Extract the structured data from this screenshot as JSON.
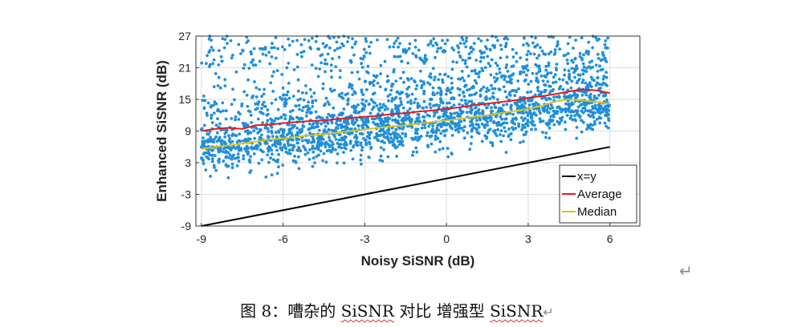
{
  "chart_data": {
    "type": "scatter",
    "xlabel": "Noisy SiSNR (dB)",
    "ylabel": "Enhanced SiSNR (dB)",
    "xlim": [
      -9.2,
      7.1
    ],
    "ylim": [
      -9,
      27
    ],
    "xticks": [
      -9,
      -6,
      -3,
      0,
      3,
      6
    ],
    "yticks": [
      -9,
      -3,
      3,
      9,
      15,
      21,
      27
    ],
    "xtick_labels": [
      "-9",
      "-6",
      "-3",
      "0",
      "3",
      "6"
    ],
    "ytick_labels": [
      "-9",
      "-3",
      "3",
      "9",
      "15",
      "21",
      "27"
    ],
    "grid": true,
    "legend_position": "bottom-right",
    "colors": {
      "points": "#1f8fdb",
      "xy": "#000000",
      "average": "#e8191c",
      "median": "#d8c21c"
    },
    "legend": [
      {
        "label": "x=y",
        "color": "#000000"
      },
      {
        "label": "Average",
        "color": "#e8191c"
      },
      {
        "label": "Median",
        "color": "#d8c21c"
      }
    ],
    "series": [
      {
        "name": "x=y",
        "x": [
          -9,
          6
        ],
        "y": [
          -9,
          6
        ]
      },
      {
        "name": "Average",
        "x": [
          -9,
          -8.5,
          -8,
          -7.5,
          -7,
          -6.5,
          -6,
          -5.5,
          -5,
          -4.5,
          -4,
          -3.5,
          -3,
          -2.5,
          -2,
          -1.5,
          -1,
          -0.5,
          0,
          0.5,
          1,
          1.5,
          2,
          2.5,
          3,
          3.5,
          4,
          4.5,
          5,
          5.5,
          6
        ],
        "y": [
          9.0,
          9.4,
          9.6,
          9.4,
          10.1,
          10.2,
          10.5,
          10.7,
          10.9,
          11.0,
          11.3,
          11.5,
          11.7,
          11.9,
          12.2,
          12.4,
          12.7,
          12.9,
          13.2,
          13.5,
          13.9,
          14.2,
          14.5,
          14.8,
          15.3,
          15.6,
          16.0,
          16.5,
          16.9,
          16.7,
          16.2
        ]
      },
      {
        "name": "Median",
        "x": [
          -9,
          -8.5,
          -8,
          -7.5,
          -7,
          -6.5,
          -6,
          -5.5,
          -5,
          -4.5,
          -4,
          -3.5,
          -3,
          -2.5,
          -2,
          -1.5,
          -1,
          -0.5,
          0,
          0.5,
          1,
          1.5,
          2,
          2.5,
          3,
          3.5,
          4,
          4.5,
          5,
          5.5,
          6
        ],
        "y": [
          5.6,
          6.0,
          6.3,
          6.6,
          7.0,
          7.4,
          7.6,
          7.9,
          8.2,
          8.4,
          8.7,
          9.0,
          9.3,
          9.6,
          9.9,
          10.1,
          10.4,
          10.7,
          11.0,
          11.3,
          11.7,
          12.0,
          12.4,
          12.8,
          13.2,
          13.8,
          14.6,
          15.0,
          14.8,
          14.5,
          14.2
        ]
      }
    ],
    "scatter_cloud": {
      "name": "samples",
      "x_range": [
        -9,
        6
      ],
      "median_trend": {
        "x": [
          -9,
          6
        ],
        "y": [
          5.6,
          14.2
        ]
      },
      "spread_low": [
        -1.5,
        8
      ],
      "upper_bound": 27
    }
  },
  "caption": {
    "prefix": "图 8：嘈杂的 ",
    "term1": "SiSNR",
    "middle": " 对比 增强型 ",
    "term2": "SiSNR",
    "return_symbol": "↵"
  },
  "paragraph_mark": "↵"
}
